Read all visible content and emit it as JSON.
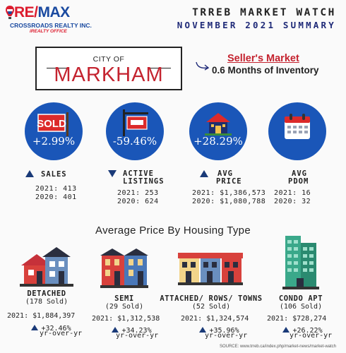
{
  "header": {
    "logo": {
      "brand_re": "RE/",
      "brand_max": "MAX",
      "line1": "CROSSROADS REALTY INC.",
      "line2": "iREALTY OFFICE"
    },
    "title": "TRREB MARKET WATCH",
    "subtitle": "NOVEMBER 2021 SUMMARY"
  },
  "city": {
    "prefix": "CITY OF",
    "name": "MARKHAM"
  },
  "market": {
    "type": "Seller's Market",
    "inventory": "0.6 Months of Inventory"
  },
  "metrics": [
    {
      "icon": "sold-sign-icon",
      "change": "+2.99%",
      "direction": "up",
      "label": "SALES",
      "label2": "",
      "y2021": "2021: 413",
      "y2020": "2020: 401"
    },
    {
      "icon": "listing-sign-icon",
      "change": "-59.46%",
      "direction": "down",
      "label": "ACTIVE",
      "label2": "LISTINGS",
      "y2021": "2021: 253",
      "y2020": "2020: 624"
    },
    {
      "icon": "house-icon",
      "change": "+28.29%",
      "direction": "up",
      "label": "AVG",
      "label2": "PRICE",
      "y2021": "2021: $1,386,573",
      "y2020": "2020: $1,080,788"
    },
    {
      "icon": "calendar-icon",
      "change": "",
      "direction": "",
      "label": "AVG",
      "label2": "PDOM",
      "y2021": "2021: 16",
      "y2020": "2020: 32"
    }
  ],
  "housing_title": "Average Price By Housing Type",
  "housing": [
    {
      "icon": "detached-house-icon",
      "name": "DETACHED",
      "sold": "(178 Sold)",
      "price": "2021: $1,884,397",
      "change": "+32.46%",
      "yoy": "yr-over-yr"
    },
    {
      "icon": "semi-house-icon",
      "name": "SEMI",
      "sold": "(29 Sold)",
      "price": "2021: $1,312,538",
      "change": "+34.23%",
      "yoy": "yr-over-yr"
    },
    {
      "icon": "townhouse-icon",
      "name": "ATTACHED/ ROWS/ TOWNS",
      "sold": "(52 Sold)",
      "price": "2021: $1,324,574",
      "change": "+35.96%",
      "yoy": "yr-over-yr"
    },
    {
      "icon": "condo-icon",
      "name": "CONDO APT",
      "sold": "(106 Sold)",
      "price": "2021: $728,274",
      "change": "+26.22%",
      "yoy": "yr-over-yr"
    }
  ],
  "source": "SOURCE: www.trreb.ca/index.php/market-news/market-watch",
  "colors": {
    "blue": "#1a56b8",
    "red": "#c4232f",
    "navy": "#1f2a78"
  }
}
